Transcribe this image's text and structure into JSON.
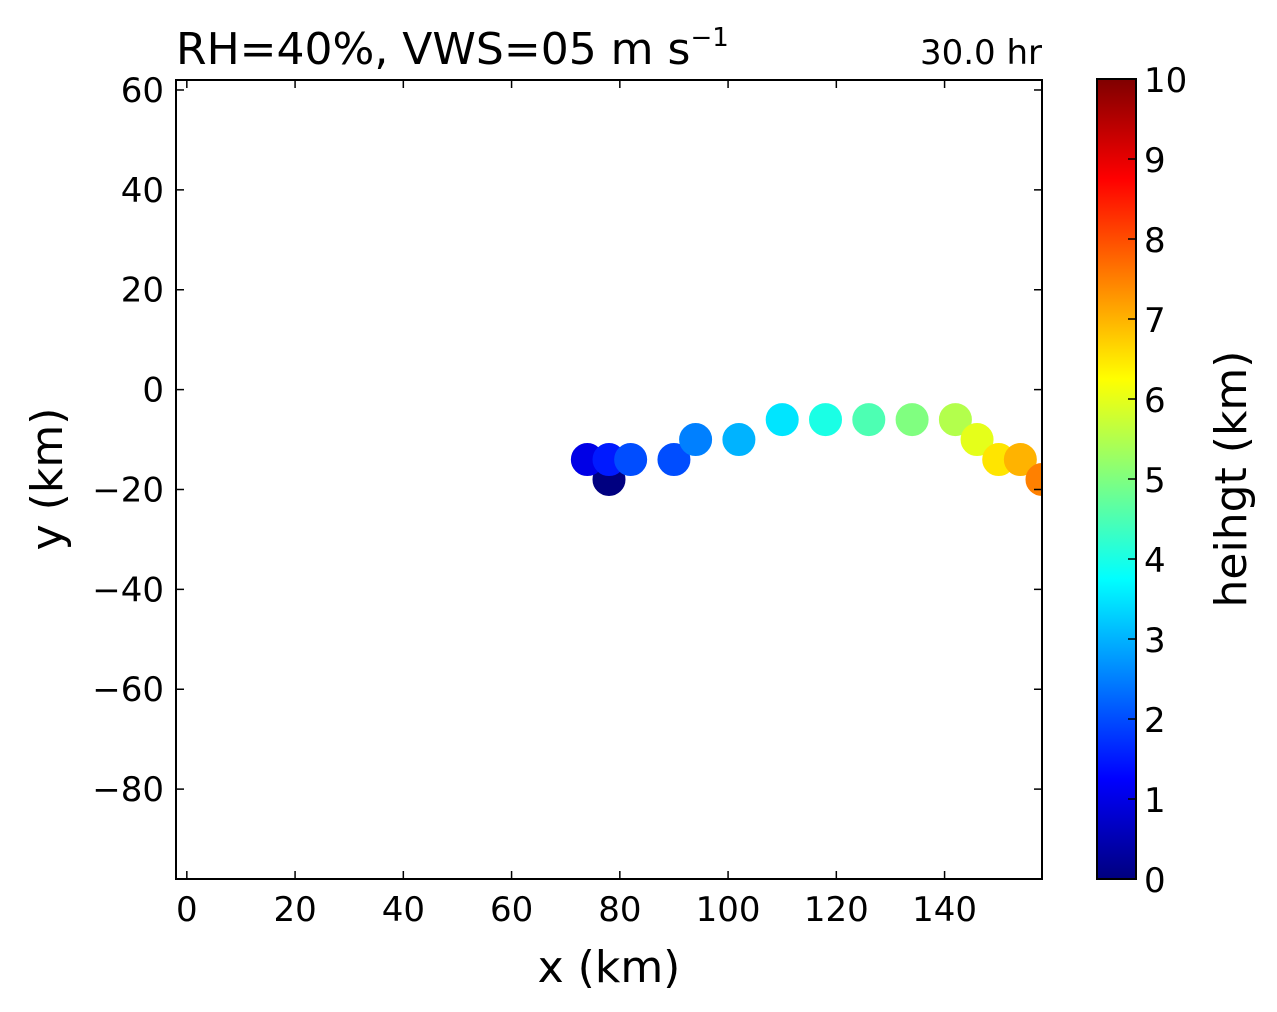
{
  "chart_data": {
    "type": "scatter",
    "title": "RH=40%, VWS=05 m s",
    "title_superscript": "−1",
    "time_label": "30.0 hr",
    "time_label_color": "#0000ff",
    "xlabel": "x (km)",
    "ylabel": "y (km)",
    "xlim": [
      -2,
      158
    ],
    "ylim": [
      -98,
      62
    ],
    "xticks": [
      {
        "value": 0,
        "label": "0"
      },
      {
        "value": 20,
        "label": "20"
      },
      {
        "value": 40,
        "label": "40"
      },
      {
        "value": 60,
        "label": "60"
      },
      {
        "value": 80,
        "label": "80"
      },
      {
        "value": 100,
        "label": "100"
      },
      {
        "value": 120,
        "label": "120"
      },
      {
        "value": 140,
        "label": "140"
      }
    ],
    "yticks": [
      {
        "value": 60,
        "label": "60"
      },
      {
        "value": 40,
        "label": "40"
      },
      {
        "value": 20,
        "label": "20"
      },
      {
        "value": 0,
        "label": "0"
      },
      {
        "value": -20,
        "label": "−20"
      },
      {
        "value": -40,
        "label": "−40"
      },
      {
        "value": -60,
        "label": "−60"
      },
      {
        "value": -80,
        "label": "−80"
      }
    ],
    "points": [
      {
        "x": 78,
        "y": -18,
        "z": 0.0
      },
      {
        "x": 74,
        "y": -14,
        "z": 1.0
      },
      {
        "x": 78,
        "y": -14,
        "z": 1.5
      },
      {
        "x": 82,
        "y": -14,
        "z": 2.0
      },
      {
        "x": 90,
        "y": -14,
        "z": 2.0
      },
      {
        "x": 94,
        "y": -10,
        "z": 2.5
      },
      {
        "x": 102,
        "y": -10,
        "z": 3.0
      },
      {
        "x": 110,
        "y": -6,
        "z": 3.5
      },
      {
        "x": 118,
        "y": -6,
        "z": 4.0
      },
      {
        "x": 126,
        "y": -6,
        "z": 4.5
      },
      {
        "x": 134,
        "y": -6,
        "z": 5.0
      },
      {
        "x": 142,
        "y": -6,
        "z": 5.5
      },
      {
        "x": 146,
        "y": -10,
        "z": 6.0
      },
      {
        "x": 150,
        "y": -14,
        "z": 6.5
      },
      {
        "x": 154,
        "y": -14,
        "z": 7.0
      },
      {
        "x": 158,
        "y": -18,
        "z": 7.5
      }
    ],
    "colorbar": {
      "label": "heihgt (km)",
      "colormap": "jet",
      "range": [
        0,
        10
      ],
      "ticks": [
        {
          "value": 0,
          "label": "0"
        },
        {
          "value": 1,
          "label": "1"
        },
        {
          "value": 2,
          "label": "2"
        },
        {
          "value": 3,
          "label": "3"
        },
        {
          "value": 4,
          "label": "4"
        },
        {
          "value": 5,
          "label": "5"
        },
        {
          "value": 6,
          "label": "6"
        },
        {
          "value": 7,
          "label": "7"
        },
        {
          "value": 8,
          "label": "8"
        },
        {
          "value": 9,
          "label": "9"
        },
        {
          "value": 10,
          "label": "10"
        }
      ]
    },
    "grid": false,
    "legend": "none"
  }
}
